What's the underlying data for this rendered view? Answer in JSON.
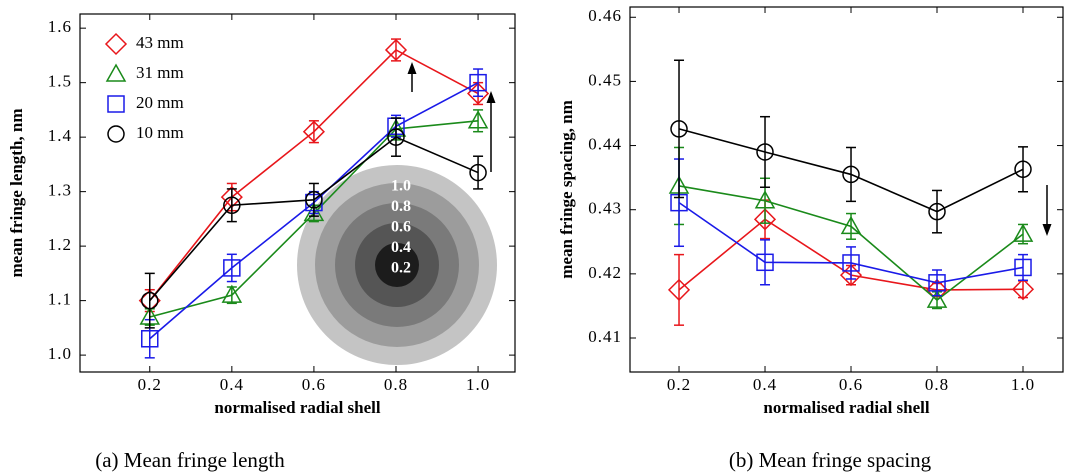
{
  "chart_data": [
    {
      "type": "line",
      "xlabel": "normalised radial shell",
      "ylabel": "mean fringe length, nm",
      "caption": "(a)  Mean fringe length",
      "x": [
        0.2,
        0.4,
        0.6,
        0.8,
        1.0
      ],
      "xlim": [
        0.03,
        1.09
      ],
      "xticks": [
        0.2,
        0.4,
        0.6,
        0.8,
        {
          "value": 1.0,
          "label": "1.0"
        }
      ],
      "ylim": [
        0.969,
        1.626
      ],
      "yticks": [
        {
          "value": 1.0,
          "label": "1.0"
        },
        1.1,
        1.2,
        1.3,
        1.4,
        1.5,
        1.6
      ],
      "legend": "upper left",
      "inset_labels": [
        "1.0",
        "0.8",
        "0.6",
        "0.4",
        "0.2"
      ],
      "series": [
        {
          "name": "43 mm",
          "color": "#e8161b",
          "marker": "diamond",
          "values": [
            1.1,
            1.29,
            1.41,
            1.56,
            1.48
          ],
          "errors": [
            0.02,
            0.025,
            0.02,
            0.02,
            0.02
          ]
        },
        {
          "name": "31 mm",
          "color": "#1a8a1a",
          "marker": "triangle",
          "values": [
            1.07,
            1.11,
            1.26,
            1.415,
            1.43
          ],
          "errors": [
            0.015,
            0.015,
            0.015,
            0.02,
            0.02
          ]
        },
        {
          "name": "20 mm",
          "color": "#1a1ae8",
          "marker": "square",
          "values": [
            1.03,
            1.16,
            1.28,
            1.42,
            1.5
          ],
          "errors": [
            0.035,
            0.025,
            0.02,
            0.02,
            0.025
          ]
        },
        {
          "name": "10 mm",
          "color": "#000000",
          "marker": "circle",
          "values": [
            1.1,
            1.275,
            1.285,
            1.4,
            1.335
          ],
          "errors": [
            0.05,
            0.03,
            0.03,
            0.035,
            0.03
          ]
        }
      ]
    },
    {
      "type": "line",
      "xlabel": "normalised radial shell",
      "ylabel": "mean fringe spacing, nm",
      "caption": "(b)  Mean fringe spacing",
      "x": [
        0.2,
        0.4,
        0.6,
        0.8,
        1.0
      ],
      "xlim": [
        0.086,
        1.093
      ],
      "xticks": [
        0.2,
        0.4,
        0.6,
        0.8,
        {
          "value": 1.0,
          "label": "1.0"
        }
      ],
      "ylim": [
        0.4047,
        0.4616
      ],
      "yticks": [
        0.41,
        0.42,
        0.43,
        0.44,
        0.45,
        0.46
      ],
      "series": [
        {
          "color": "#e8161b",
          "marker": "diamond",
          "values": [
            0.4175,
            0.4285,
            0.4198,
            0.4175,
            0.4176
          ],
          "errors": [
            0.0055,
            0.003,
            0.0015,
            0.001,
            0.0013
          ]
        },
        {
          "color": "#1a8a1a",
          "marker": "triangle",
          "values": [
            0.4337,
            0.4314,
            0.4274,
            0.4159,
            0.4262
          ],
          "errors": [
            0.006,
            0.0035,
            0.002,
            0.0013,
            0.0015
          ]
        },
        {
          "color": "#1a1ae8",
          "marker": "square",
          "values": [
            0.4311,
            0.4218,
            0.4217,
            0.4186,
            0.421
          ],
          "errors": [
            0.0068,
            0.0035,
            0.0025,
            0.002,
            0.002
          ]
        },
        {
          "color": "#000000",
          "marker": "circle",
          "values": [
            0.4426,
            0.439,
            0.4355,
            0.4297,
            0.4363
          ],
          "errors": [
            0.0107,
            0.0055,
            0.0042,
            0.0033,
            0.0035
          ]
        }
      ]
    }
  ]
}
